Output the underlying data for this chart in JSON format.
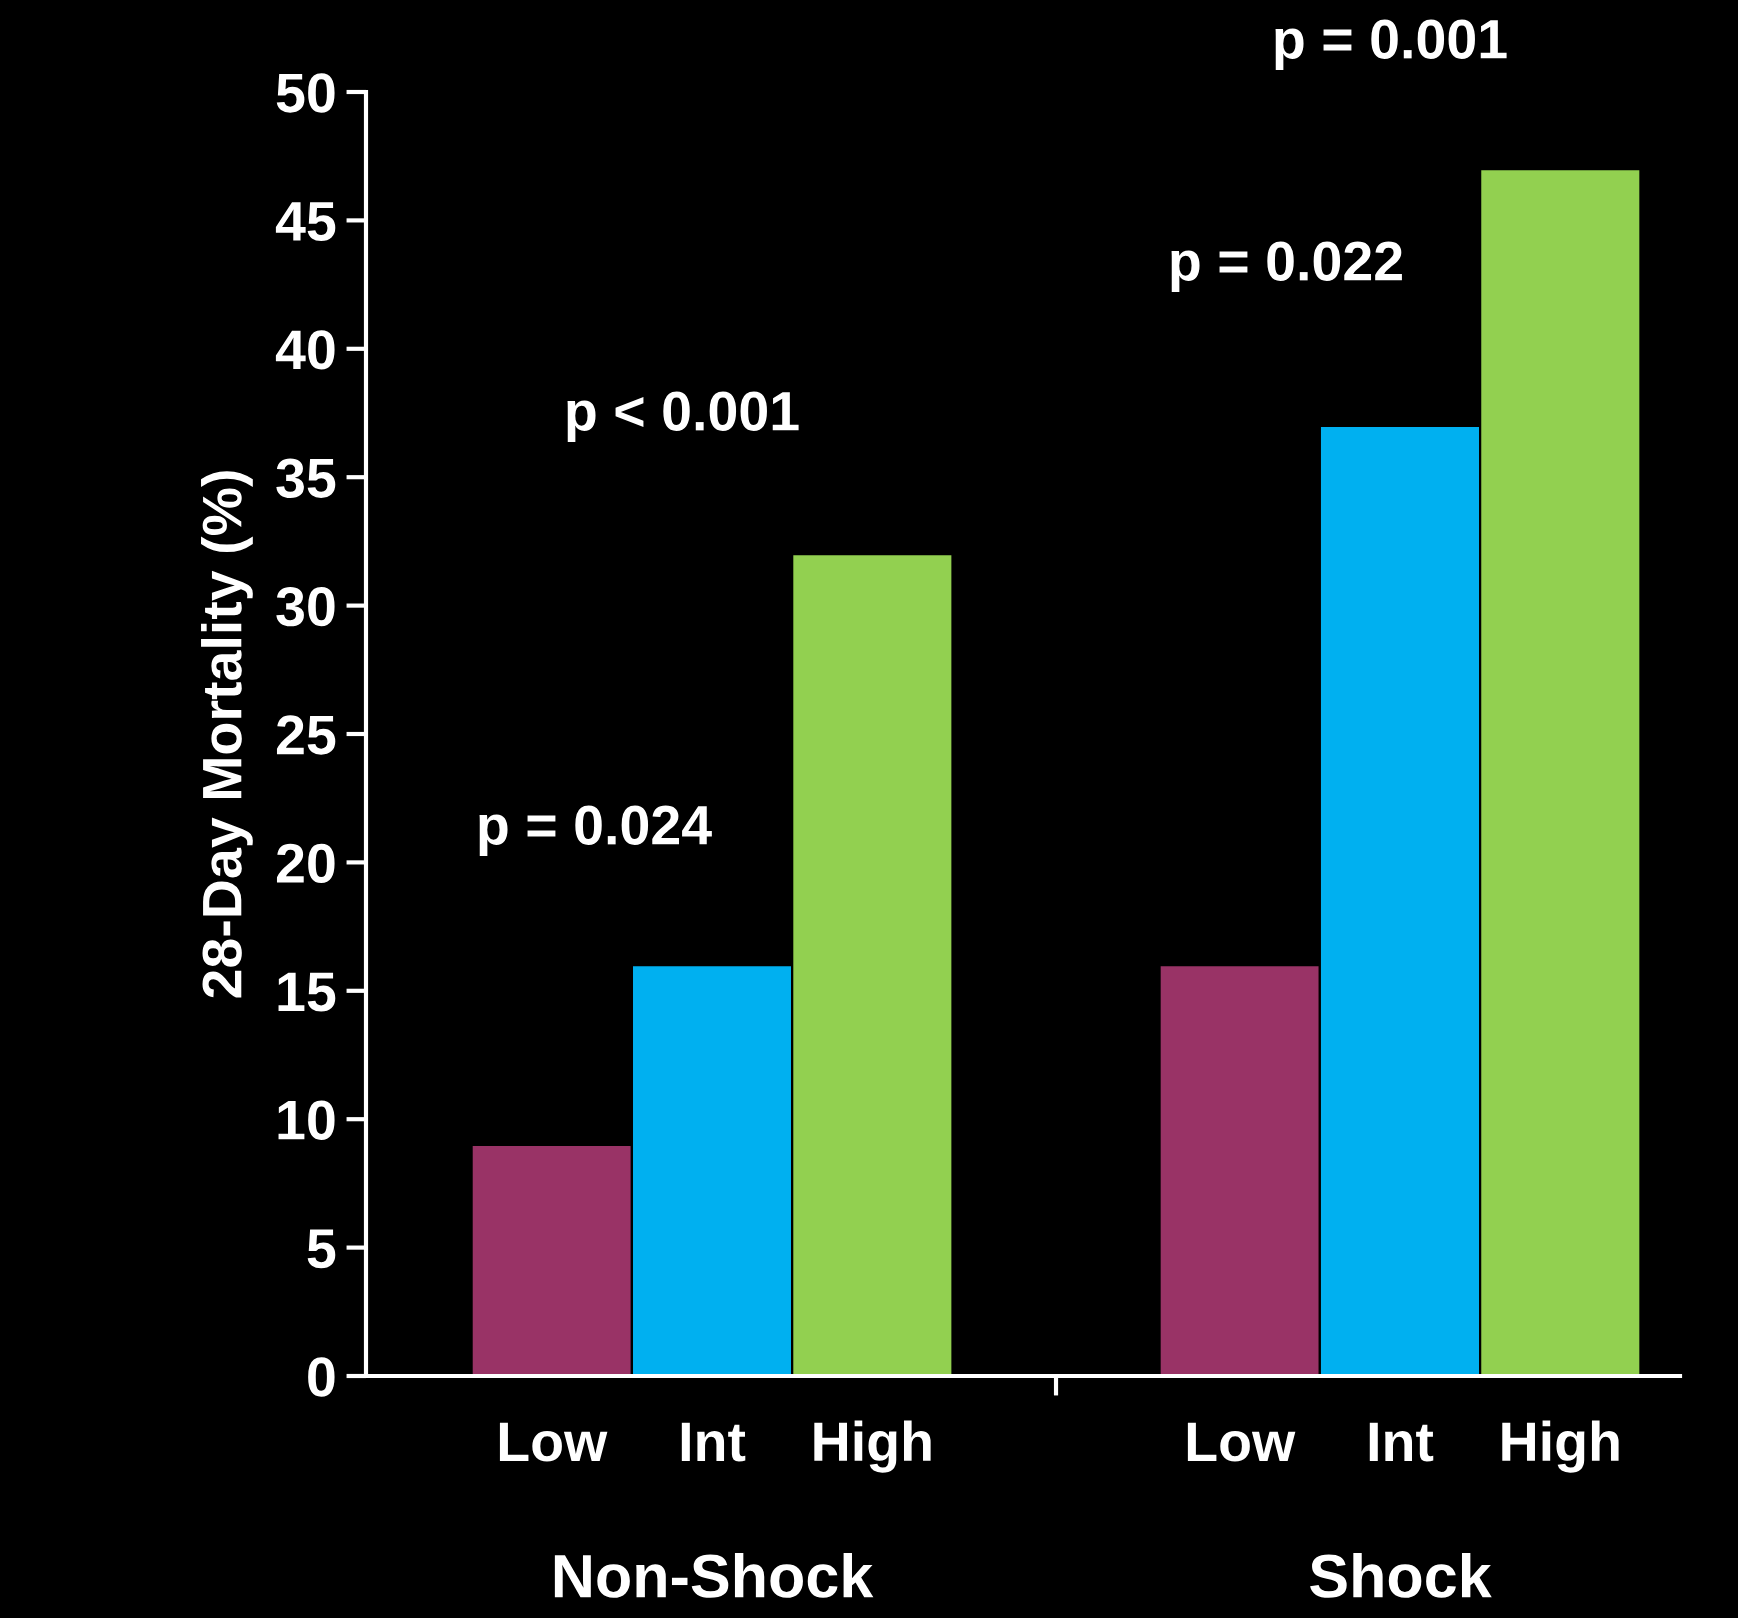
{
  "chart_data": {
    "type": "bar",
    "ylabel": "28-Day Mortality (%)",
    "categories": [
      "Non-Shock",
      "Shock"
    ],
    "series": [
      {
        "name": "Low",
        "color": "#993366",
        "values": [
          9,
          16
        ]
      },
      {
        "name": "Int",
        "color": "#00b0f0",
        "values": [
          16,
          37
        ]
      },
      {
        "name": "High",
        "color": "#92d050",
        "values": [
          32,
          47
        ]
      }
    ],
    "ylim": [
      0,
      50
    ],
    "yticks": [
      0,
      5,
      10,
      15,
      20,
      25,
      30,
      35,
      40,
      45,
      50
    ],
    "annotations": [
      "p = 0.024",
      "p < 0.001",
      "p = 0.022",
      "p = 0.001"
    ],
    "grid": false,
    "legend": false
  }
}
